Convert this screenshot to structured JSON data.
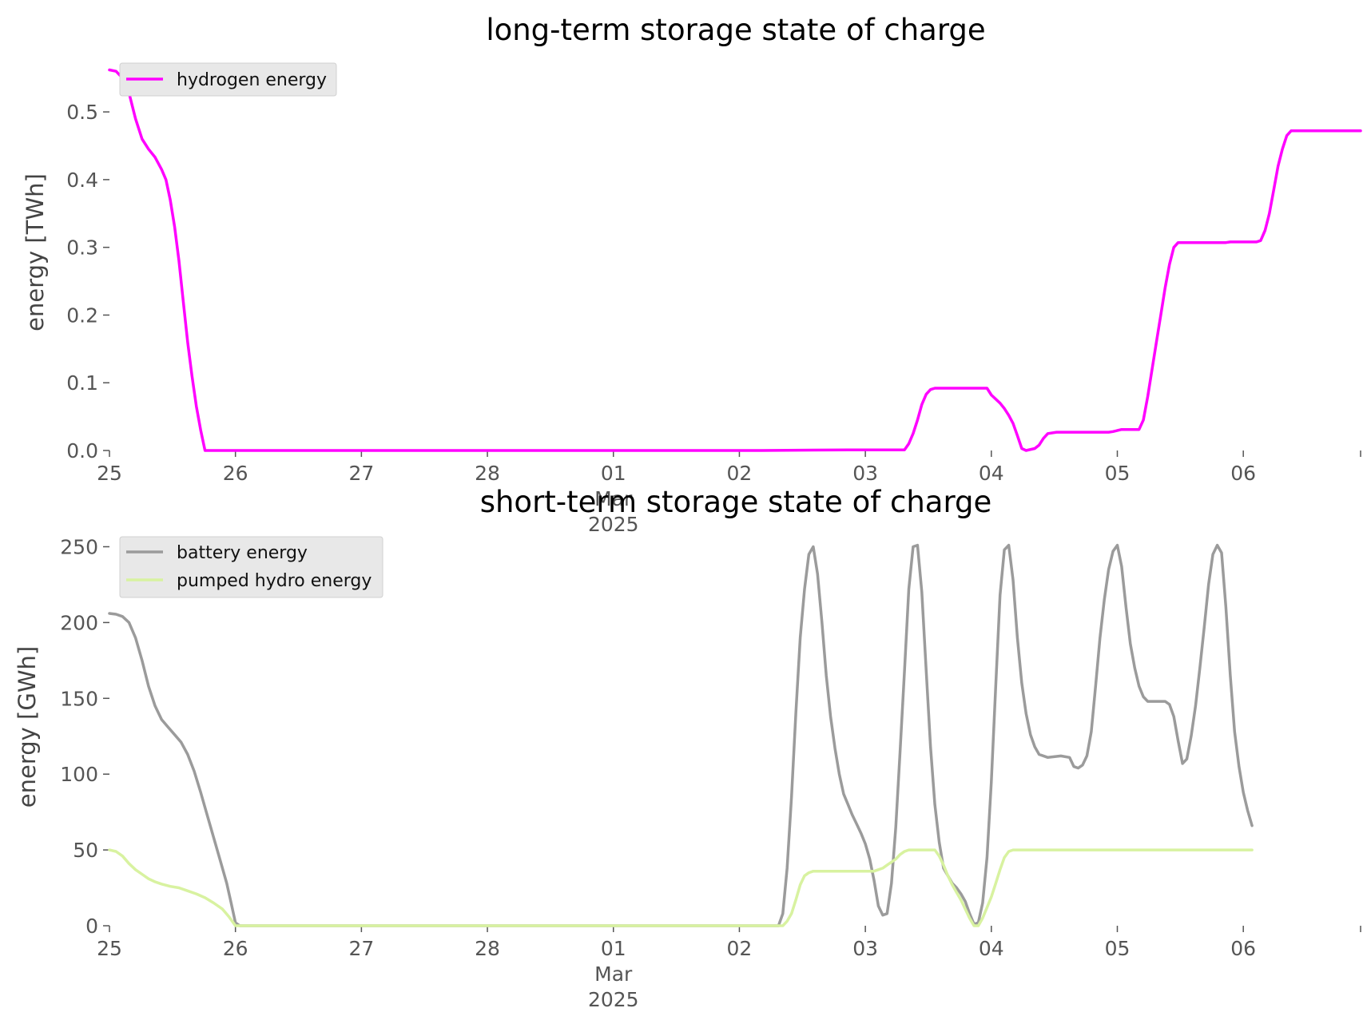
{
  "figure": {
    "background": "#ffffff"
  },
  "chart_data": [
    {
      "type": "line",
      "title": "long-term storage state of charge",
      "xlabel": "",
      "ylabel": "energy [TWh]",
      "xlim_hours": [
        0,
        288
      ],
      "ylim": [
        0,
        0.565
      ],
      "yticks": [
        0.0,
        0.1,
        0.2,
        0.3,
        0.4,
        0.5
      ],
      "ytick_labels": [
        "0.0",
        "0.1",
        "0.2",
        "0.3",
        "0.4",
        "0.5"
      ],
      "xticks": [
        {
          "h": 0,
          "label": "25"
        },
        {
          "h": 29,
          "label": "26"
        },
        {
          "h": 58,
          "label": "27"
        },
        {
          "h": 87,
          "label": "28"
        },
        {
          "h": 116,
          "label": "01",
          "sub": [
            "Mar",
            "2025"
          ]
        },
        {
          "h": 145,
          "label": "02"
        },
        {
          "h": 174,
          "label": "03"
        },
        {
          "h": 203,
          "label": "04"
        },
        {
          "h": 232,
          "label": "05"
        },
        {
          "h": 261,
          "label": "06"
        },
        {
          "h": 288,
          "label": ""
        }
      ],
      "legend": "top-left",
      "grid": false,
      "series": [
        {
          "name": "hydrogen energy",
          "color": "#ff00ff",
          "points": [
            [
              0,
              0.562
            ],
            [
              1.5,
              0.56
            ],
            [
              3,
              0.55
            ],
            [
              4.5,
              0.528
            ],
            [
              6,
              0.49
            ],
            [
              7.5,
              0.46
            ],
            [
              9,
              0.445
            ],
            [
              10.5,
              0.433
            ],
            [
              12,
              0.415
            ],
            [
              13,
              0.4
            ],
            [
              14,
              0.37
            ],
            [
              15,
              0.33
            ],
            [
              16,
              0.28
            ],
            [
              17,
              0.22
            ],
            [
              18,
              0.16
            ],
            [
              19,
              0.11
            ],
            [
              20,
              0.065
            ],
            [
              21,
              0.03
            ],
            [
              22,
              0.0
            ],
            [
              23,
              0.0
            ],
            [
              150,
              0.0
            ],
            [
              170,
              0.001
            ],
            [
              183,
              0.001
            ],
            [
              184,
              0.01
            ],
            [
              185,
              0.025
            ],
            [
              186,
              0.045
            ],
            [
              187,
              0.068
            ],
            [
              188,
              0.083
            ],
            [
              189,
              0.09
            ],
            [
              190,
              0.092
            ],
            [
              202,
              0.092
            ],
            [
              203,
              0.082
            ],
            [
              205,
              0.07
            ],
            [
              206,
              0.062
            ],
            [
              207,
              0.052
            ],
            [
              208,
              0.04
            ],
            [
              209,
              0.022
            ],
            [
              210,
              0.003
            ],
            [
              211,
              0.0
            ],
            [
              213,
              0.003
            ],
            [
              214,
              0.008
            ],
            [
              215,
              0.018
            ],
            [
              216,
              0.025
            ],
            [
              218,
              0.027
            ],
            [
              230,
              0.027
            ],
            [
              231,
              0.028
            ],
            [
              233,
              0.031
            ],
            [
              237,
              0.031
            ],
            [
              238,
              0.045
            ],
            [
              239,
              0.08
            ],
            [
              240,
              0.12
            ],
            [
              241,
              0.16
            ],
            [
              242,
              0.2
            ],
            [
              243,
              0.24
            ],
            [
              244,
              0.275
            ],
            [
              245,
              0.3
            ],
            [
              246,
              0.307
            ],
            [
              257,
              0.307
            ],
            [
              258,
              0.308
            ],
            [
              264,
              0.308
            ],
            [
              265,
              0.31
            ],
            [
              266,
              0.325
            ],
            [
              267,
              0.35
            ],
            [
              268,
              0.385
            ],
            [
              269,
              0.42
            ],
            [
              270,
              0.445
            ],
            [
              271,
              0.465
            ],
            [
              272,
              0.472
            ],
            [
              288,
              0.472
            ]
          ]
        }
      ]
    },
    {
      "type": "line",
      "title": "short-term storage state of charge",
      "xlabel": "",
      "ylabel": "energy [GWh]",
      "xlim_hours": [
        0,
        288
      ],
      "ylim": [
        0,
        255
      ],
      "yticks": [
        0,
        50,
        100,
        150,
        200,
        250
      ],
      "ytick_labels": [
        "0",
        "50",
        "100",
        "150",
        "200",
        "250"
      ],
      "xticks": [
        {
          "h": 0,
          "label": "25"
        },
        {
          "h": 29,
          "label": "26"
        },
        {
          "h": 58,
          "label": "27"
        },
        {
          "h": 87,
          "label": "28"
        },
        {
          "h": 116,
          "label": "01",
          "sub": [
            "Mar",
            "2025"
          ]
        },
        {
          "h": 145,
          "label": "02"
        },
        {
          "h": 174,
          "label": "03"
        },
        {
          "h": 203,
          "label": "04"
        },
        {
          "h": 232,
          "label": "05"
        },
        {
          "h": 261,
          "label": "06"
        },
        {
          "h": 288,
          "label": ""
        }
      ],
      "legend": "top-left",
      "grid": false,
      "series": [
        {
          "name": "battery energy",
          "color": "#9b9b9b",
          "points": [
            [
              0,
              206
            ],
            [
              1.5,
              205.5
            ],
            [
              3,
              204
            ],
            [
              4.5,
              200
            ],
            [
              6,
              190
            ],
            [
              7.5,
              175
            ],
            [
              9,
              158
            ],
            [
              10.5,
              145
            ],
            [
              12,
              136
            ],
            [
              13.5,
              131
            ],
            [
              15,
              126
            ],
            [
              16.5,
              121
            ],
            [
              18,
              113
            ],
            [
              19.5,
              102
            ],
            [
              21,
              88
            ],
            [
              22.5,
              73
            ],
            [
              24,
              58
            ],
            [
              25.5,
              43
            ],
            [
              27,
              28
            ],
            [
              28,
              15
            ],
            [
              29,
              2
            ],
            [
              30,
              0
            ],
            [
              154,
              0
            ],
            [
              155,
              8
            ],
            [
              156,
              38
            ],
            [
              157,
              85
            ],
            [
              158,
              140
            ],
            [
              159,
              190
            ],
            [
              160,
              222
            ],
            [
              161,
              245
            ],
            [
              162,
              250
            ],
            [
              163,
              232
            ],
            [
              164,
              200
            ],
            [
              165,
              165
            ],
            [
              166,
              138
            ],
            [
              167,
              117
            ],
            [
              168,
              100
            ],
            [
              169,
              87
            ],
            [
              170,
              80
            ],
            [
              171,
              73
            ],
            [
              172,
              67
            ],
            [
              173,
              61
            ],
            [
              174,
              54
            ],
            [
              175,
              44
            ],
            [
              176,
              30
            ],
            [
              177,
              13
            ],
            [
              178,
              7
            ],
            [
              179,
              8
            ],
            [
              180,
              28
            ],
            [
              181,
              65
            ],
            [
              182,
              115
            ],
            [
              183,
              168
            ],
            [
              184,
              222
            ],
            [
              185,
              250
            ],
            [
              186,
              251
            ],
            [
              187,
              220
            ],
            [
              188,
              168
            ],
            [
              189,
              118
            ],
            [
              190,
              80
            ],
            [
              191,
              55
            ],
            [
              192,
              38
            ],
            [
              193,
              33
            ],
            [
              194,
              28
            ],
            [
              195,
              25
            ],
            [
              196,
              21
            ],
            [
              197,
              16
            ],
            [
              198,
              8
            ],
            [
              199,
              1
            ],
            [
              200,
              2
            ],
            [
              201,
              15
            ],
            [
              202,
              45
            ],
            [
              203,
              95
            ],
            [
              204,
              158
            ],
            [
              205,
              218
            ],
            [
              206,
              248
            ],
            [
              207,
              251
            ],
            [
              208,
              228
            ],
            [
              209,
              190
            ],
            [
              210,
              160
            ],
            [
              211,
              140
            ],
            [
              212,
              126
            ],
            [
              213,
              118
            ],
            [
              214,
              113
            ],
            [
              216,
              111
            ],
            [
              219,
              112
            ],
            [
              221,
              111
            ],
            [
              222,
              105
            ],
            [
              223,
              104
            ],
            [
              224,
              106
            ],
            [
              225,
              112
            ],
            [
              226,
              128
            ],
            [
              227,
              158
            ],
            [
              228,
              190
            ],
            [
              229,
              215
            ],
            [
              230,
              235
            ],
            [
              231,
              247
            ],
            [
              232,
              251
            ],
            [
              233,
              237
            ],
            [
              234,
              210
            ],
            [
              235,
              186
            ],
            [
              236,
              170
            ],
            [
              237,
              158
            ],
            [
              238,
              151
            ],
            [
              239,
              148
            ],
            [
              241,
              148
            ],
            [
              243,
              148
            ],
            [
              244,
              146
            ],
            [
              245,
              138
            ],
            [
              246,
              122
            ],
            [
              247,
              107
            ],
            [
              248,
              110
            ],
            [
              249,
              125
            ],
            [
              250,
              145
            ],
            [
              251,
              170
            ],
            [
              252,
              197
            ],
            [
              253,
              225
            ],
            [
              254,
              245
            ],
            [
              255,
              251
            ],
            [
              256,
              246
            ],
            [
              257,
              210
            ],
            [
              258,
              165
            ],
            [
              259,
              128
            ],
            [
              260,
              105
            ],
            [
              261,
              88
            ],
            [
              262,
              76
            ],
            [
              263,
              66
            ]
          ]
        },
        {
          "name": "pumped hydro energy",
          "color": "#d8f2a0",
          "points": [
            [
              0,
              50
            ],
            [
              1.5,
              49
            ],
            [
              3,
              46
            ],
            [
              4.5,
              41
            ],
            [
              6,
              37
            ],
            [
              7.5,
              34
            ],
            [
              9,
              31
            ],
            [
              10.5,
              29
            ],
            [
              12,
              27.5
            ],
            [
              14,
              26
            ],
            [
              16,
              25
            ],
            [
              18,
              23
            ],
            [
              20,
              21
            ],
            [
              22,
              18.5
            ],
            [
              24,
              15
            ],
            [
              26,
              11
            ],
            [
              27.5,
              6
            ],
            [
              28.5,
              2
            ],
            [
              29,
              0
            ],
            [
              155,
              0
            ],
            [
              156,
              3
            ],
            [
              157,
              8
            ],
            [
              158,
              17
            ],
            [
              159,
              27
            ],
            [
              160,
              33
            ],
            [
              161,
              35
            ],
            [
              162,
              36
            ],
            [
              176,
              36
            ],
            [
              177,
              37
            ],
            [
              178,
              38
            ],
            [
              179,
              40
            ],
            [
              180,
              42
            ],
            [
              181,
              44
            ],
            [
              182,
              47
            ],
            [
              183,
              49
            ],
            [
              184,
              50
            ],
            [
              190,
              50
            ],
            [
              191,
              46
            ],
            [
              192,
              40
            ],
            [
              193,
              33
            ],
            [
              194,
              27
            ],
            [
              195,
              22
            ],
            [
              196,
              17
            ],
            [
              197,
              11
            ],
            [
              198,
              5
            ],
            [
              199,
              0
            ],
            [
              200,
              0
            ],
            [
              201,
              5
            ],
            [
              202,
              12
            ],
            [
              203,
              19
            ],
            [
              204,
              28
            ],
            [
              205,
              37
            ],
            [
              206,
              45
            ],
            [
              207,
              49
            ],
            [
              208,
              50
            ],
            [
              263,
              50
            ]
          ]
        }
      ]
    }
  ]
}
